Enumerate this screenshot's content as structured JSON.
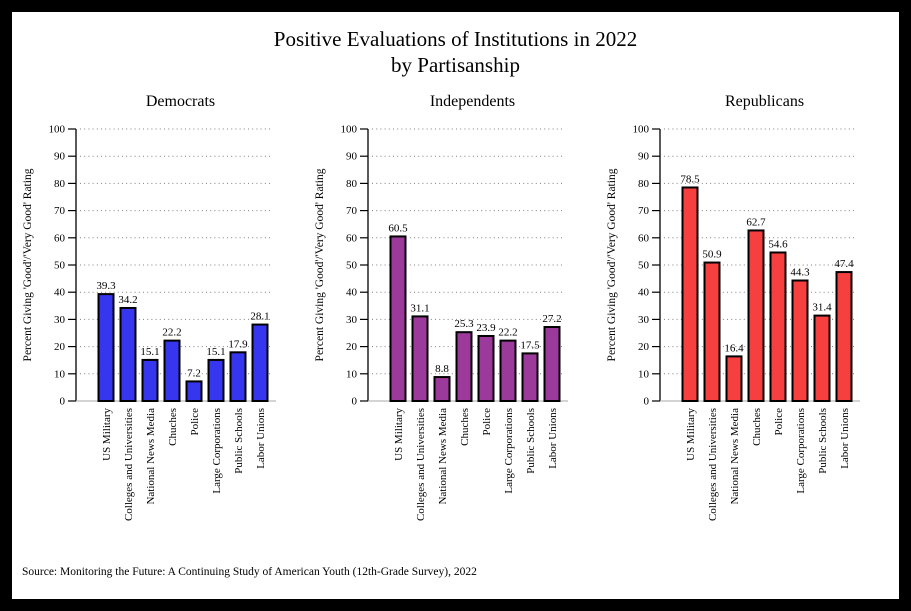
{
  "page": {
    "title_line1": "Positive Evaluations of Institutions in 2022",
    "title_line2": "by Partisanship",
    "source": "Source: Monitoring the Future: A Continuing Study of American Youth (12th-Grade Survey), 2022"
  },
  "chart_data": [
    {
      "type": "bar",
      "title": "Democrats",
      "categories": [
        "US Military",
        "Colleges and Universities",
        "National News Media",
        "Chuches",
        "Police",
        "Large Corporations",
        "Public Schools",
        "Labor Unions"
      ],
      "values": [
        39.3,
        34.2,
        15.1,
        22.2,
        7.2,
        15.1,
        17.9,
        28.1
      ],
      "bar_color": "#3636ee",
      "bar_outline_color": "#000000",
      "ylabel": "Percent Giving 'Good'/'Very Good' Rating",
      "ylim": [
        0,
        100
      ],
      "ytick_step": 10,
      "grid": "dotted",
      "legend": "none"
    },
    {
      "type": "bar",
      "title": "Independents",
      "categories": [
        "US Military",
        "Colleges and Universities",
        "National News Media",
        "Chuches",
        "Police",
        "Large Corporations",
        "Public Schools",
        "Labor Unions"
      ],
      "values": [
        60.5,
        31.1,
        8.8,
        25.3,
        23.9,
        22.2,
        17.5,
        27.2
      ],
      "bar_color": "#9c3a9c",
      "bar_outline_color": "#000000",
      "ylabel": "Percent Giving 'Good'/'Very Good' Rating",
      "ylim": [
        0,
        100
      ],
      "ytick_step": 10,
      "grid": "dotted",
      "legend": "none"
    },
    {
      "type": "bar",
      "title": "Republicans",
      "categories": [
        "US Military",
        "Colleges and Universities",
        "National News Media",
        "Chuches",
        "Police",
        "Large Corporations",
        "Public Schools",
        "Labor Unions"
      ],
      "values": [
        78.5,
        50.9,
        16.4,
        62.7,
        54.6,
        44.3,
        31.4,
        47.4
      ],
      "bar_color": "#f64040",
      "bar_outline_color": "#000000",
      "ylabel": "Percent Giving 'Good'/'Very Good' Rating",
      "ylim": [
        0,
        100
      ],
      "ytick_step": 10,
      "grid": "dotted",
      "legend": "none"
    }
  ]
}
